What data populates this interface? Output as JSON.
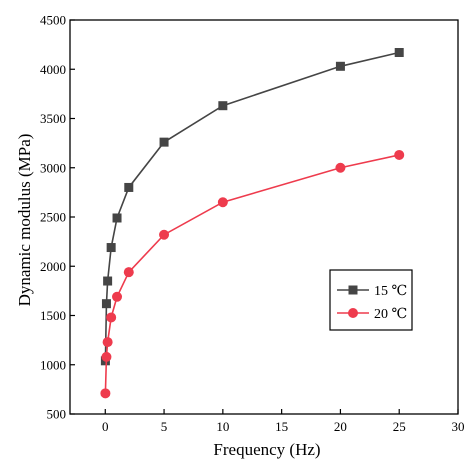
{
  "chart_data": {
    "type": "line",
    "title": "",
    "xlabel": "Frequency (Hz)",
    "ylabel": "Dynamic modulus (MPa)",
    "xlim": [
      -3,
      30
    ],
    "ylim": [
      500,
      4500
    ],
    "xticks": [
      0,
      5,
      10,
      15,
      20,
      25,
      30
    ],
    "yticks": [
      500,
      1000,
      1500,
      2000,
      2500,
      3000,
      3500,
      4000,
      4500
    ],
    "xtick_labels": [
      "0",
      "5",
      "10",
      "15",
      "20",
      "25",
      "30"
    ],
    "ytick_labels": [
      "500",
      "1000",
      "1500",
      "2000",
      "2500",
      "3000",
      "3500",
      "4000",
      "4500"
    ],
    "grid": false,
    "legend_position": "right",
    "series": [
      {
        "name": "15 ℃",
        "marker": "square",
        "color": "#454545",
        "x": [
          0.01,
          0.1,
          0.2,
          0.5,
          1,
          2,
          5,
          10,
          20,
          25
        ],
        "y": [
          1040,
          1620,
          1850,
          2190,
          2490,
          2800,
          3260,
          3630,
          4030,
          4170
        ]
      },
      {
        "name": "20 ℃",
        "marker": "circle",
        "color": "#ee3b4d",
        "x": [
          0.01,
          0.1,
          0.2,
          0.5,
          1,
          2,
          5,
          10,
          20,
          25
        ],
        "y": [
          710,
          1080,
          1230,
          1480,
          1690,
          1940,
          2320,
          2650,
          3000,
          3130
        ]
      }
    ]
  }
}
